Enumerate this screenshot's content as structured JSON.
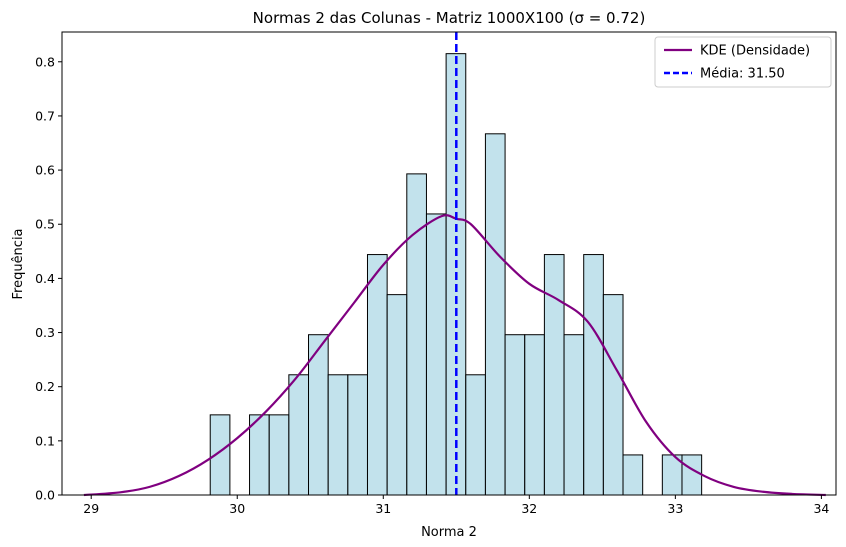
{
  "chart_data": {
    "type": "bar",
    "title": "Normas 2 das Colunas - Matriz 1000X100 (σ = 0.72)",
    "xlabel": "Norma 2",
    "ylabel": "Frequência",
    "xlim": [
      28.8,
      34.1
    ],
    "ylim": [
      0,
      0.855
    ],
    "xticks": [
      29,
      30,
      31,
      32,
      33,
      34
    ],
    "yticks": [
      0.0,
      0.1,
      0.2,
      0.3,
      0.4,
      0.5,
      0.6,
      0.7,
      0.8
    ],
    "grid": false,
    "legend_position": "top-right",
    "histogram": {
      "bin_start": 29.815,
      "bin_width": 0.1346,
      "values": [
        0.148,
        0,
        0.148,
        0.148,
        0.222,
        0.296,
        0.222,
        0.222,
        0.444,
        0.37,
        0.593,
        0.519,
        0.815,
        0.222,
        0.667,
        0.296,
        0.296,
        0.444,
        0.296,
        0.444,
        0.37,
        0.074,
        0,
        0.074,
        0.074
      ],
      "fill_color": "#add8e6",
      "edge_color": "#000000"
    },
    "series": [
      {
        "name": "KDE (Densidade)",
        "type": "line",
        "color": "#800080",
        "x": [
          28.95,
          29.2,
          29.4,
          29.6,
          29.8,
          30.0,
          30.2,
          30.4,
          30.6,
          30.8,
          31.0,
          31.2,
          31.4,
          31.5,
          31.6,
          31.8,
          32.0,
          32.2,
          32.4,
          32.6,
          32.8,
          33.0,
          33.2,
          33.4,
          33.6,
          33.8,
          34.03
        ],
        "y": [
          0.0,
          0.005,
          0.015,
          0.035,
          0.065,
          0.105,
          0.155,
          0.215,
          0.285,
          0.355,
          0.425,
          0.48,
          0.515,
          0.51,
          0.5,
          0.44,
          0.39,
          0.36,
          0.32,
          0.23,
          0.135,
          0.07,
          0.035,
          0.015,
          0.006,
          0.002,
          0.0
        ]
      }
    ],
    "mean_line": {
      "name": "Média: 31.50",
      "x": 31.5,
      "color": "#0000ff",
      "style": "dashed"
    }
  }
}
